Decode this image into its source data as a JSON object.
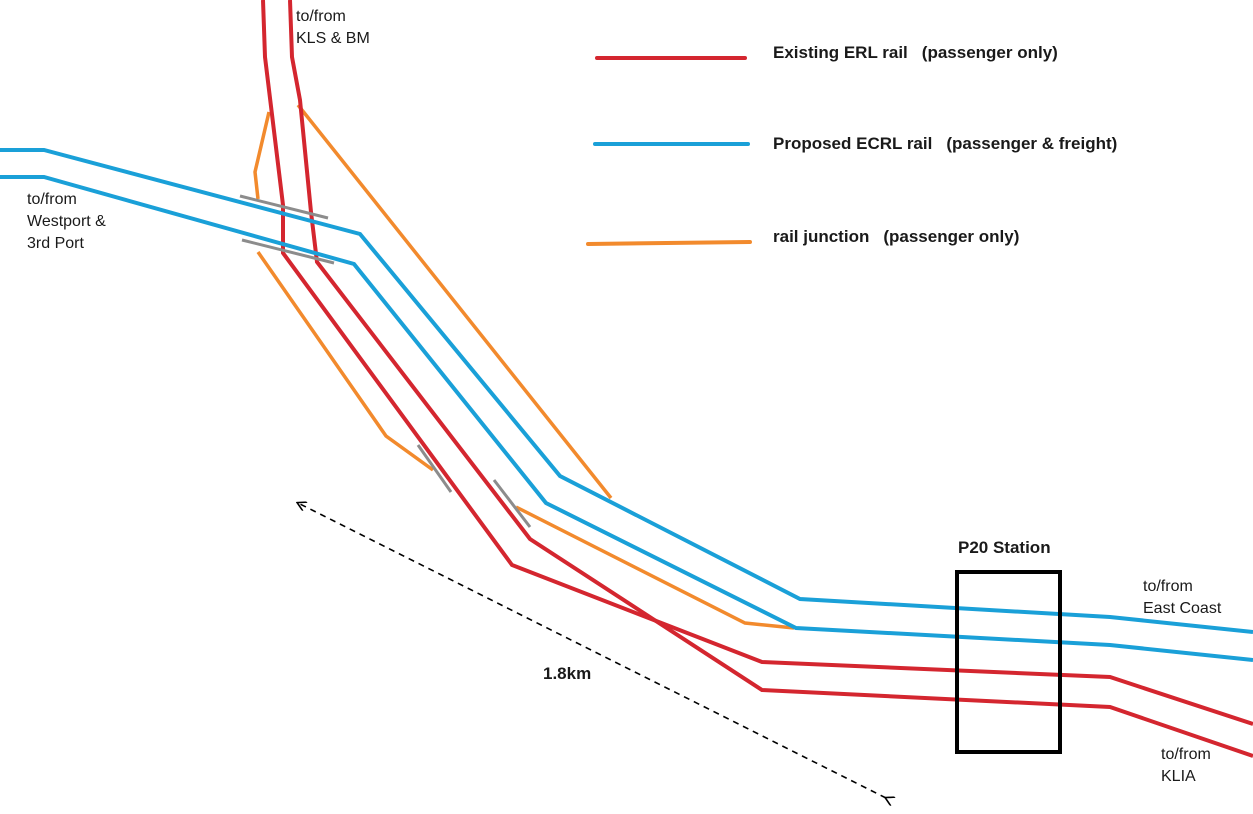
{
  "legend": [
    {
      "name": "Existing ERL rail",
      "note": "(passenger only)",
      "color": "#d4262f"
    },
    {
      "name": "Proposed ECRL rail",
      "note": "(passenger & freight)",
      "color": "#1aa0d8"
    },
    {
      "name": "rail junction",
      "note": "(passenger only)",
      "color": "#f28a2d"
    }
  ],
  "labels": {
    "kls": [
      "to/from",
      "KLS & BM"
    ],
    "westport": [
      "to/from",
      "Westport &",
      "3rd Port"
    ],
    "east_coast": [
      "to/from",
      "East Coast"
    ],
    "klia": [
      "to/from",
      "KLIA"
    ],
    "station": "P20 Station",
    "distance": "1.8km"
  },
  "colors": {
    "erl": "#d4262f",
    "ecrl": "#1aa0d8",
    "junction": "#f28a2d",
    "switch": "#8c8c8c",
    "station_box": "#000000",
    "arrow": "#000000"
  }
}
